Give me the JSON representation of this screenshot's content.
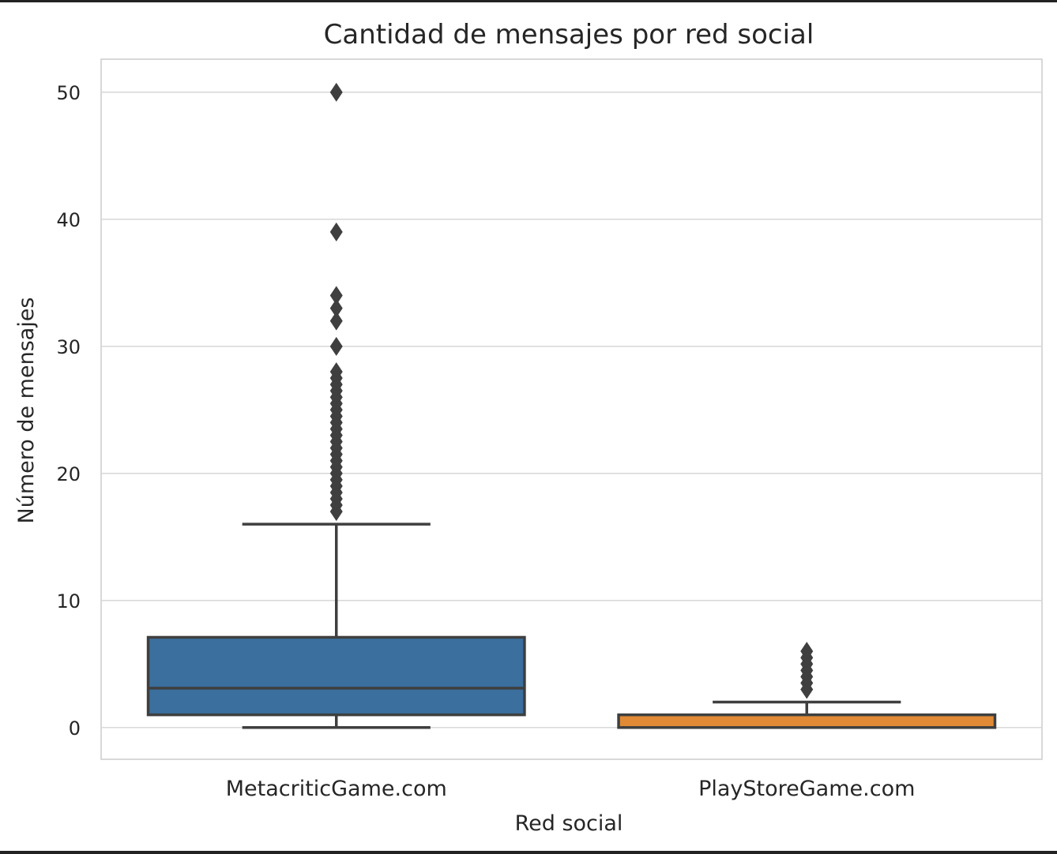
{
  "chart_data": {
    "type": "box",
    "title": "Cantidad de mensajes por red social",
    "xlabel": "Red social",
    "ylabel": "Número de mensajes",
    "ylim": [
      -2.5,
      52.6
    ],
    "yticks": [
      0,
      10,
      20,
      30,
      40,
      50
    ],
    "grid": true,
    "categories": [
      "MetacriticGame.com",
      "PlayStoreGame.com"
    ],
    "boxes": [
      {
        "category": "MetacriticGame.com",
        "color": "#3A6F9E",
        "whisker_low": 0,
        "q1": 1,
        "median": 3.1,
        "q3": 7.1,
        "whisker_high": 16,
        "outliers": [
          17,
          17.5,
          18,
          18.5,
          19,
          19.5,
          20,
          20.5,
          21,
          21.5,
          22,
          22.5,
          23,
          23.5,
          24,
          24.5,
          25,
          25.5,
          26,
          26.5,
          27,
          27.5,
          28,
          30,
          32,
          33,
          34,
          39,
          50
        ]
      },
      {
        "category": "PlayStoreGame.com",
        "color": "#E08A35",
        "whisker_low": 0,
        "q1": 0,
        "median": 0,
        "q3": 1,
        "whisker_high": 2,
        "outliers": [
          3,
          3.5,
          4,
          4.5,
          5,
          5.5,
          6
        ]
      }
    ]
  }
}
